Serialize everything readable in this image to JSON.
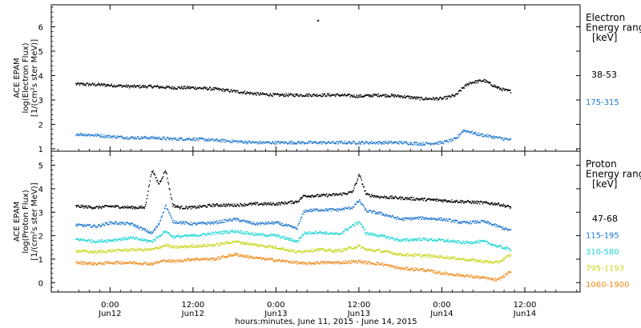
{
  "chart_data": [
    {
      "type": "scatter",
      "panel": "electron",
      "ylabel_lines": [
        "ACE EPAM",
        "log(Electron Flux)",
        "[1/(cm²s ster MeV)]"
      ],
      "ylim": [
        0.9,
        6.9
      ],
      "yticks": [
        1,
        2,
        3,
        4,
        5,
        6
      ],
      "legend": {
        "title_lines": [
          "Electron",
          "Energy ranges",
          "[keV]"
        ]
      },
      "series": [
        {
          "name": "38-53",
          "color": "#000000",
          "points": [
            [
              -10,
              3.65
            ],
            [
              -4,
              3.63
            ],
            [
              0,
              3.6
            ],
            [
              6,
              3.55
            ],
            [
              12,
              3.55
            ],
            [
              18,
              3.5
            ],
            [
              24,
              3.5
            ],
            [
              30,
              3.45
            ],
            [
              36,
              3.35
            ],
            [
              42,
              3.25
            ],
            [
              48,
              3.2
            ],
            [
              54,
              3.2
            ],
            [
              60,
              3.2
            ],
            [
              66,
              3.2
            ],
            [
              72,
              3.15
            ],
            [
              78,
              3.2
            ],
            [
              84,
              3.15
            ],
            [
              90,
              3.05
            ],
            [
              96,
              3.05
            ],
            [
              100,
              3.2
            ],
            [
              102,
              3.5
            ],
            [
              104,
              3.7
            ],
            [
              106,
              3.75
            ],
            [
              108,
              3.8
            ],
            [
              110,
              3.65
            ],
            [
              112,
              3.5
            ],
            [
              114,
              3.4
            ],
            [
              116,
              3.35
            ]
          ]
        },
        {
          "name": "175-315",
          "color": "#1f77d0",
          "points": [
            [
              -10,
              1.6
            ],
            [
              -4,
              1.55
            ],
            [
              0,
              1.5
            ],
            [
              6,
              1.45
            ],
            [
              12,
              1.45
            ],
            [
              18,
              1.4
            ],
            [
              24,
              1.4
            ],
            [
              30,
              1.35
            ],
            [
              36,
              1.3
            ],
            [
              42,
              1.25
            ],
            [
              48,
              1.25
            ],
            [
              54,
              1.25
            ],
            [
              60,
              1.25
            ],
            [
              66,
              1.25
            ],
            [
              72,
              1.25
            ],
            [
              78,
              1.25
            ],
            [
              84,
              1.25
            ],
            [
              90,
              1.2
            ],
            [
              96,
              1.25
            ],
            [
              100,
              1.4
            ],
            [
              102,
              1.75
            ],
            [
              104,
              1.7
            ],
            [
              106,
              1.6
            ],
            [
              108,
              1.55
            ],
            [
              110,
              1.5
            ],
            [
              112,
              1.45
            ],
            [
              114,
              1.4
            ],
            [
              116,
              1.35
            ]
          ]
        }
      ],
      "outliers": [
        [
          60,
          6.25
        ]
      ]
    },
    {
      "type": "scatter",
      "panel": "proton",
      "ylabel_lines": [
        "ACE EPAM",
        "log(Proton Flux)",
        "[1/(cm²s ster MeV)]"
      ],
      "ylim": [
        -0.4,
        5.6
      ],
      "yticks": [
        0,
        1,
        2,
        3,
        4,
        5
      ],
      "legend": {
        "title_lines": [
          "Proton",
          "Energy ranges",
          "[keV]"
        ]
      },
      "series": [
        {
          "name": "47-68",
          "color": "#000000",
          "points": [
            [
              -10,
              3.25
            ],
            [
              -4,
              3.2
            ],
            [
              0,
              3.25
            ],
            [
              6,
              3.2
            ],
            [
              10,
              3.2
            ],
            [
              12,
              4.8
            ],
            [
              14,
              4.2
            ],
            [
              16,
              4.8
            ],
            [
              18,
              3.3
            ],
            [
              20,
              3.2
            ],
            [
              24,
              3.2
            ],
            [
              30,
              3.3
            ],
            [
              36,
              3.3
            ],
            [
              42,
              3.35
            ],
            [
              48,
              3.35
            ],
            [
              54,
              3.45
            ],
            [
              56,
              3.7
            ],
            [
              60,
              3.7
            ],
            [
              66,
              3.75
            ],
            [
              70,
              3.85
            ],
            [
              72,
              4.6
            ],
            [
              74,
              3.75
            ],
            [
              78,
              3.65
            ],
            [
              84,
              3.6
            ],
            [
              90,
              3.55
            ],
            [
              96,
              3.5
            ],
            [
              102,
              3.45
            ],
            [
              108,
              3.4
            ],
            [
              112,
              3.35
            ],
            [
              116,
              3.2
            ]
          ]
        },
        {
          "name": "115-195",
          "color": "#1f77d0",
          "points": [
            [
              -10,
              2.45
            ],
            [
              -4,
              2.4
            ],
            [
              0,
              2.55
            ],
            [
              6,
              2.5
            ],
            [
              12,
              2.1
            ],
            [
              14,
              2.5
            ],
            [
              16,
              3.3
            ],
            [
              18,
              2.6
            ],
            [
              24,
              2.5
            ],
            [
              30,
              2.55
            ],
            [
              36,
              2.7
            ],
            [
              42,
              2.5
            ],
            [
              48,
              2.55
            ],
            [
              54,
              2.3
            ],
            [
              56,
              3.05
            ],
            [
              60,
              3.1
            ],
            [
              66,
              3.1
            ],
            [
              70,
              3.2
            ],
            [
              72,
              3.5
            ],
            [
              74,
              3.05
            ],
            [
              78,
              2.95
            ],
            [
              84,
              2.7
            ],
            [
              90,
              2.75
            ],
            [
              96,
              2.7
            ],
            [
              102,
              2.55
            ],
            [
              108,
              2.6
            ],
            [
              112,
              2.4
            ],
            [
              116,
              2.2
            ]
          ]
        },
        {
          "name": "310-580",
          "color": "#1fd6d6",
          "points": [
            [
              -10,
              1.85
            ],
            [
              -4,
              1.75
            ],
            [
              0,
              1.8
            ],
            [
              6,
              1.9
            ],
            [
              12,
              1.75
            ],
            [
              16,
              2.2
            ],
            [
              18,
              1.95
            ],
            [
              24,
              2.0
            ],
            [
              30,
              2.1
            ],
            [
              36,
              2.2
            ],
            [
              42,
              2.05
            ],
            [
              48,
              2.0
            ],
            [
              54,
              1.75
            ],
            [
              56,
              2.1
            ],
            [
              60,
              2.15
            ],
            [
              66,
              2.05
            ],
            [
              72,
              2.6
            ],
            [
              74,
              2.1
            ],
            [
              78,
              2.0
            ],
            [
              84,
              1.8
            ],
            [
              90,
              1.85
            ],
            [
              96,
              1.8
            ],
            [
              102,
              1.7
            ],
            [
              108,
              1.75
            ],
            [
              112,
              1.55
            ],
            [
              116,
              1.4
            ]
          ]
        },
        {
          "name": "795-1193",
          "color": "#c9d61a",
          "points": [
            [
              -10,
              1.35
            ],
            [
              -4,
              1.3
            ],
            [
              0,
              1.35
            ],
            [
              6,
              1.4
            ],
            [
              12,
              1.4
            ],
            [
              16,
              1.6
            ],
            [
              18,
              1.5
            ],
            [
              24,
              1.55
            ],
            [
              30,
              1.6
            ],
            [
              36,
              1.75
            ],
            [
              42,
              1.6
            ],
            [
              48,
              1.5
            ],
            [
              54,
              1.3
            ],
            [
              56,
              1.35
            ],
            [
              60,
              1.4
            ],
            [
              66,
              1.35
            ],
            [
              72,
              1.55
            ],
            [
              74,
              1.4
            ],
            [
              78,
              1.35
            ],
            [
              84,
              1.2
            ],
            [
              90,
              1.15
            ],
            [
              96,
              1.1
            ],
            [
              102,
              1.0
            ],
            [
              108,
              0.9
            ],
            [
              112,
              0.85
            ],
            [
              116,
              1.2
            ]
          ]
        },
        {
          "name": "1060-1900",
          "color": "#f08a1a",
          "points": [
            [
              -10,
              0.85
            ],
            [
              -4,
              0.8
            ],
            [
              0,
              0.85
            ],
            [
              6,
              0.85
            ],
            [
              12,
              0.8
            ],
            [
              16,
              0.95
            ],
            [
              18,
              0.9
            ],
            [
              24,
              1.0
            ],
            [
              30,
              1.0
            ],
            [
              36,
              1.2
            ],
            [
              42,
              1.05
            ],
            [
              48,
              0.95
            ],
            [
              54,
              0.85
            ],
            [
              56,
              0.8
            ],
            [
              60,
              0.85
            ],
            [
              66,
              0.85
            ],
            [
              72,
              0.9
            ],
            [
              74,
              0.85
            ],
            [
              78,
              0.8
            ],
            [
              84,
              0.6
            ],
            [
              90,
              0.55
            ],
            [
              96,
              0.4
            ],
            [
              102,
              0.3
            ],
            [
              108,
              0.2
            ],
            [
              112,
              0.1
            ],
            [
              116,
              0.5
            ]
          ]
        }
      ]
    }
  ],
  "x_axis": {
    "label": "hours:minutes, June 11, 2015 - June 14, 2015",
    "xlim": [
      -17,
      136
    ],
    "ticks": [
      {
        "hour": 0,
        "time": "0:00",
        "date": "Jun12"
      },
      {
        "hour": 24,
        "time": "12:00",
        "date": "Jun12"
      },
      {
        "hour": 48,
        "time": "0:00",
        "date": "Jun13"
      },
      {
        "hour": 72,
        "time": "12:00",
        "date": "Jun13"
      },
      {
        "hour": 96,
        "time": "0:00",
        "date": "Jun14"
      },
      {
        "hour": 120,
        "time": "12:00",
        "date": "Jun14"
      }
    ]
  }
}
